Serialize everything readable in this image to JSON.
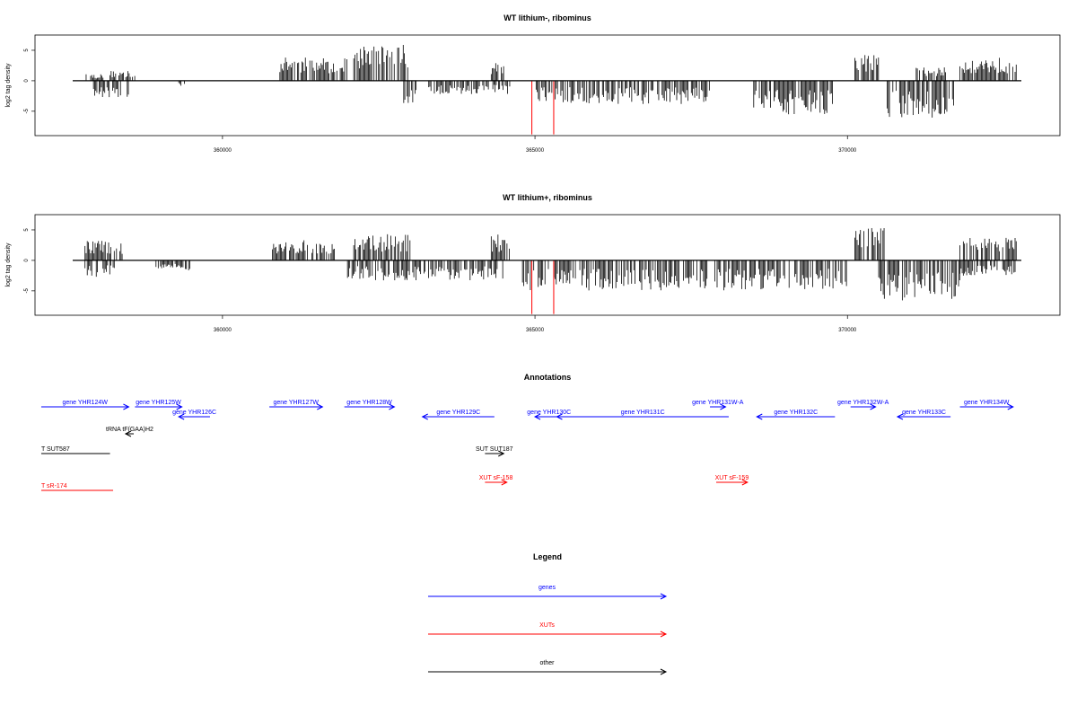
{
  "chart_data": [
    {
      "type": "bar",
      "title": "WT lithium-, ribominus",
      "ylabel": "log2 tag density",
      "xlim": [
        357000,
        373400
      ],
      "ylim": [
        -9,
        7.5
      ],
      "xticks": [
        360000,
        365000,
        370000
      ],
      "xtick_labels": [
        "360000",
        "365000",
        "370000"
      ],
      "yticks": [
        -5,
        0,
        5
      ],
      "ytick_labels": [
        "-5",
        "0",
        "5"
      ],
      "signal_profile": {
        "description": "per-position log2 tag density, plus strand positive / minus strand negative",
        "positive_regions": [
          {
            "start": 357800,
            "end": 358100,
            "level": 1.0
          },
          {
            "start": 358200,
            "end": 358600,
            "level": 1.5
          },
          {
            "start": 360900,
            "end": 361200,
            "level": 3.5
          },
          {
            "start": 361200,
            "end": 362000,
            "level": 3.5
          },
          {
            "start": 362100,
            "end": 363000,
            "level": 5.5
          },
          {
            "start": 364300,
            "end": 364550,
            "level": 3.0
          },
          {
            "start": 370100,
            "end": 370500,
            "level": 4.0
          },
          {
            "start": 371100,
            "end": 371600,
            "level": 2.0
          },
          {
            "start": 371800,
            "end": 372700,
            "level": 3.5
          }
        ],
        "negative_regions": [
          {
            "start": 357900,
            "end": 358500,
            "level": -2.5
          },
          {
            "start": 359300,
            "end": 359400,
            "level": -1.0
          },
          {
            "start": 362900,
            "end": 363100,
            "level": -3.5
          },
          {
            "start": 363300,
            "end": 364600,
            "level": -2.0
          },
          {
            "start": 365000,
            "end": 367800,
            "level": -3.5
          },
          {
            "start": 368500,
            "end": 369800,
            "level": -5.0
          },
          {
            "start": 370600,
            "end": 371700,
            "level": -5.5
          }
        ],
        "highlight_lines": [
          {
            "x": 364950,
            "value": -8.8,
            "color": "#ff0000"
          },
          {
            "x": 365300,
            "value": -8.8,
            "color": "#ff0000"
          }
        ]
      }
    },
    {
      "type": "bar",
      "title": "WT lithium+, ribominus",
      "ylabel": "log2 tag density",
      "xlim": [
        357000,
        373400
      ],
      "ylim": [
        -9,
        7.5
      ],
      "xticks": [
        360000,
        365000,
        370000
      ],
      "xtick_labels": [
        "360000",
        "365000",
        "370000"
      ],
      "yticks": [
        -5,
        0,
        5
      ],
      "ytick_labels": [
        "-5",
        "0",
        "5"
      ],
      "signal_profile": {
        "description": "per-position log2 tag density, plus strand positive / minus strand negative",
        "positive_regions": [
          {
            "start": 357800,
            "end": 358400,
            "level": 3.0
          },
          {
            "start": 360800,
            "end": 361800,
            "level": 3.0
          },
          {
            "start": 362100,
            "end": 363000,
            "level": 4.0
          },
          {
            "start": 364300,
            "end": 364600,
            "level": 4.0
          },
          {
            "start": 370100,
            "end": 370600,
            "level": 5.0
          },
          {
            "start": 371800,
            "end": 372700,
            "level": 3.5
          }
        ],
        "negative_regions": [
          {
            "start": 357800,
            "end": 358300,
            "level": -2.5
          },
          {
            "start": 358900,
            "end": 359500,
            "level": -1.5
          },
          {
            "start": 362000,
            "end": 364500,
            "level": -3.0
          },
          {
            "start": 364800,
            "end": 370000,
            "level": -4.5
          },
          {
            "start": 370500,
            "end": 371800,
            "level": -6.0
          },
          {
            "start": 371800,
            "end": 372700,
            "level": -2.5
          }
        ],
        "highlight_lines": [
          {
            "x": 364950,
            "value": -8.8,
            "color": "#ff0000"
          },
          {
            "x": 365300,
            "value": -8.8,
            "color": "#ff0000"
          }
        ]
      }
    }
  ],
  "annotations": {
    "title": "Annotations",
    "xlim": [
      357000,
      373400
    ],
    "colors": {
      "gene": "#0000ff",
      "xut": "#ff0000",
      "other": "#000000"
    },
    "features": [
      {
        "label": "gene YHR124W",
        "start": 357100,
        "end": 358500,
        "strand": "+",
        "kind": "gene",
        "row": 0
      },
      {
        "label": "gene YHR125W",
        "start": 358600,
        "end": 359350,
        "strand": "+",
        "kind": "gene",
        "row": 0
      },
      {
        "label": "gene YHR126C",
        "start": 359300,
        "end": 359800,
        "strand": "-",
        "kind": "gene",
        "row": 1
      },
      {
        "label": "gene YHR127W",
        "start": 360750,
        "end": 361600,
        "strand": "+",
        "kind": "gene",
        "row": 0
      },
      {
        "label": "gene YHR128W",
        "start": 361950,
        "end": 362750,
        "strand": "+",
        "kind": "gene",
        "row": 0
      },
      {
        "label": "gene YHR129C",
        "start": 363200,
        "end": 364350,
        "strand": "-",
        "kind": "gene",
        "row": 1
      },
      {
        "label": "gene YHR130C",
        "start": 365000,
        "end": 365450,
        "strand": "-",
        "kind": "gene",
        "row": 1
      },
      {
        "label": "gene YHR131C",
        "start": 365350,
        "end": 368100,
        "strand": "-",
        "kind": "gene",
        "row": 1
      },
      {
        "label": "gene YHR131W-A",
        "start": 367800,
        "end": 368050,
        "strand": "+",
        "kind": "gene",
        "row": 0
      },
      {
        "label": "gene YHR132C",
        "start": 368550,
        "end": 369800,
        "strand": "-",
        "kind": "gene",
        "row": 1
      },
      {
        "label": "gene YHR132W-A",
        "start": 370050,
        "end": 370450,
        "strand": "+",
        "kind": "gene",
        "row": 0
      },
      {
        "label": "gene YHR133C",
        "start": 370800,
        "end": 371650,
        "strand": "-",
        "kind": "gene",
        "row": 1
      },
      {
        "label": "gene YHR134W",
        "start": 371800,
        "end": 372650,
        "strand": "+",
        "kind": "gene",
        "row": 0
      },
      {
        "label": "tRNA tF(GAA)H2",
        "start": 358450,
        "end": 358580,
        "strand": "-",
        "kind": "other",
        "row": 2
      },
      {
        "label": "T SUT587",
        "start": 357100,
        "end": 358200,
        "strand": ".",
        "kind": "other",
        "row": 3
      },
      {
        "label": "SUT SUT187",
        "start": 364200,
        "end": 364500,
        "strand": "+",
        "kind": "other",
        "row": 3
      },
      {
        "label": "XUT sF-158",
        "start": 364200,
        "end": 364550,
        "strand": "+",
        "kind": "xut",
        "row": 4
      },
      {
        "label": "XUT sF-159",
        "start": 367900,
        "end": 368400,
        "strand": "+",
        "kind": "xut",
        "row": 4
      },
      {
        "label": "T sR-174",
        "start": 357100,
        "end": 358250,
        "strand": ".",
        "kind": "xut",
        "row": 5
      }
    ]
  },
  "legend": {
    "title": "Legend",
    "items": [
      {
        "label": "genes",
        "color": "#0000ff"
      },
      {
        "label": "XUTs",
        "color": "#ff0000"
      },
      {
        "label": "other",
        "color": "#000000"
      }
    ]
  }
}
